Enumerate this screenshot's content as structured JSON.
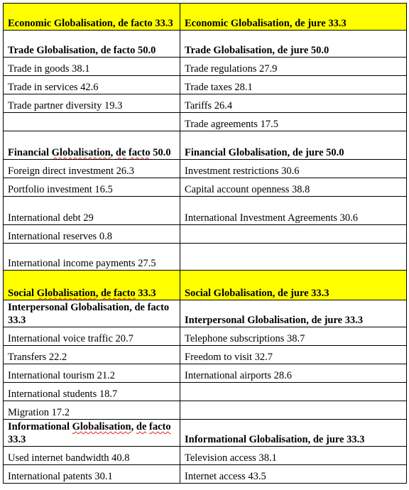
{
  "rows": [
    {
      "kind": "section",
      "height": 38,
      "left": {
        "text": "Economic Globalisation, de facto 33.3"
      },
      "right": {
        "text": "Economic Globalisation, de jure 33.3"
      }
    },
    {
      "kind": "subhead",
      "height": 38,
      "left": {
        "text": "Trade Globalisation, de facto 50.0"
      },
      "right": {
        "text": "Trade Globalisation, de jure 50.0"
      }
    },
    {
      "kind": "item",
      "height": 26,
      "left": {
        "text": "Trade in goods 38.1"
      },
      "right": {
        "text": "Trade regulations 27.9"
      }
    },
    {
      "kind": "item",
      "height": 26,
      "left": {
        "text": "Trade in services 42.6"
      },
      "right": {
        "text": "Trade taxes 28.1"
      }
    },
    {
      "kind": "item",
      "height": 26,
      "left": {
        "text": "Trade partner diversity 19.3"
      },
      "right": {
        "text": "Tariffs 26.4"
      }
    },
    {
      "kind": "item",
      "height": 26,
      "left": {
        "text": ""
      },
      "right": {
        "text": "Trade agreements 17.5"
      }
    },
    {
      "kind": "subhead",
      "height": 40,
      "left": {
        "segments": [
          {
            "t": "Financial "
          },
          {
            "t": "Globalisation",
            "sq": true
          },
          {
            "t": ", "
          },
          {
            "t": "de",
            "sq": true
          },
          {
            "t": " "
          },
          {
            "t": "facto",
            "sq": true
          },
          {
            "t": " 50.0"
          }
        ]
      },
      "right": {
        "text": "Financial Globalisation, de jure 50.0"
      }
    },
    {
      "kind": "item",
      "height": 26,
      "left": {
        "text": "Foreign direct investment 26.3"
      },
      "right": {
        "text": "Investment restrictions 30.6"
      }
    },
    {
      "kind": "item",
      "height": 26,
      "left": {
        "text": "Portfolio investment 16.5"
      },
      "right": {
        "text": "Capital account openness 38.8"
      }
    },
    {
      "kind": "item",
      "height": 40,
      "left": {
        "text": "International debt 29"
      },
      "right": {
        "text": " International Investment Agreements 30.6"
      }
    },
    {
      "kind": "item",
      "height": 26,
      "left": {
        "text": "International reserves 0.8"
      },
      "right": {
        "text": ""
      }
    },
    {
      "kind": "item",
      "height": 38,
      "left": {
        "text": "International income payments 27.5"
      },
      "right": {
        "text": ""
      }
    },
    {
      "kind": "section",
      "height": 42,
      "left": {
        "segments": [
          {
            "t": " Social "
          },
          {
            "t": "Globalisation",
            "sq": true
          },
          {
            "t": ", "
          },
          {
            "t": "de facto",
            "sq": true
          },
          {
            "t": " 33.3"
          }
        ]
      },
      "right": {
        "text": " Social Globalisation,  de jure 33.3"
      }
    },
    {
      "kind": "subhead",
      "height": 38,
      "left": {
        "text": "Interpersonal Globalisation, de facto 33.3"
      },
      "right": {
        "text": "Interpersonal Globalisation, de jure 33.3"
      }
    },
    {
      "kind": "item",
      "height": 26,
      "left": {
        "text": "International voice traffic 20.7"
      },
      "right": {
        "text": "Telephone subscriptions 38.7"
      }
    },
    {
      "kind": "item",
      "height": 26,
      "left": {
        "text": "Transfers 22.2"
      },
      "right": {
        "text": "Freedom to visit 32.7"
      }
    },
    {
      "kind": "item",
      "height": 26,
      "left": {
        "text": "International tourism 21.2"
      },
      "right": {
        "text": "International airports 28.6"
      }
    },
    {
      "kind": "item",
      "height": 26,
      "left": {
        "text": "International students 18.7"
      },
      "right": {
        "text": ""
      }
    },
    {
      "kind": "item",
      "height": 26,
      "left": {
        "text": "Migration 17.2"
      },
      "right": {
        "text": ""
      }
    },
    {
      "kind": "subhead",
      "height": 38,
      "left": {
        "segments": [
          {
            "t": "Informational "
          },
          {
            "t": "Globalisation",
            "sq": true
          },
          {
            "t": ", "
          },
          {
            "t": "de",
            "sq": true
          },
          {
            "t": " "
          },
          {
            "t": "facto",
            "sq": true
          },
          {
            "t": " 33.3"
          }
        ]
      },
      "right": {
        "text": "Informational Globalisation, de jure 33.3"
      }
    },
    {
      "kind": "item",
      "height": 26,
      "left": {
        "text": "Used internet bandwidth 40.8"
      },
      "right": {
        "text": " Television access 38.1"
      }
    },
    {
      "kind": "item",
      "height": 26,
      "left": {
        "text": "International patents 30.1"
      },
      "right": {
        "text": "Internet access 43.5"
      }
    }
  ]
}
